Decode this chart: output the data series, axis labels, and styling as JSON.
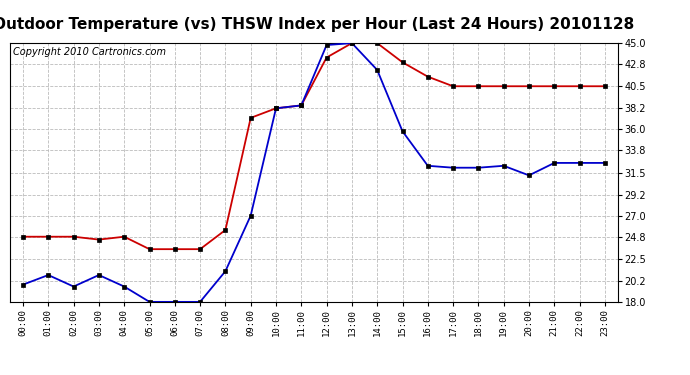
{
  "title": "Outdoor Temperature (vs) THSW Index per Hour (Last 24 Hours) 20101128",
  "copyright": "Copyright 2010 Cartronics.com",
  "x_labels": [
    "00:00",
    "01:00",
    "02:00",
    "03:00",
    "04:00",
    "05:00",
    "06:00",
    "07:00",
    "08:00",
    "09:00",
    "10:00",
    "11:00",
    "12:00",
    "13:00",
    "14:00",
    "15:00",
    "16:00",
    "17:00",
    "18:00",
    "19:00",
    "20:00",
    "21:00",
    "22:00",
    "23:00"
  ],
  "temp_blue": [
    19.8,
    20.8,
    19.6,
    20.8,
    19.6,
    18.0,
    18.0,
    18.0,
    21.2,
    27.0,
    38.2,
    38.5,
    44.8,
    45.0,
    42.2,
    35.8,
    32.2,
    32.0,
    32.0,
    32.2,
    31.2,
    32.5,
    32.5,
    32.5
  ],
  "thsw_red": [
    24.8,
    24.8,
    24.8,
    24.5,
    24.8,
    23.5,
    23.5,
    23.5,
    25.5,
    37.2,
    38.2,
    38.5,
    43.5,
    45.0,
    45.0,
    43.0,
    41.5,
    40.5,
    40.5,
    40.5,
    40.5,
    40.5,
    40.5,
    40.5
  ],
  "blue_color": "#0000cc",
  "red_color": "#cc0000",
  "bg_color": "#ffffff",
  "plot_bg": "#ffffff",
  "grid_color": "#bbbbbb",
  "title_fontsize": 11,
  "copyright_fontsize": 7,
  "y_min": 18.0,
  "y_max": 45.0,
  "y_ticks": [
    18.0,
    20.2,
    22.5,
    24.8,
    27.0,
    29.2,
    31.5,
    33.8,
    36.0,
    38.2,
    40.5,
    42.8,
    45.0
  ]
}
